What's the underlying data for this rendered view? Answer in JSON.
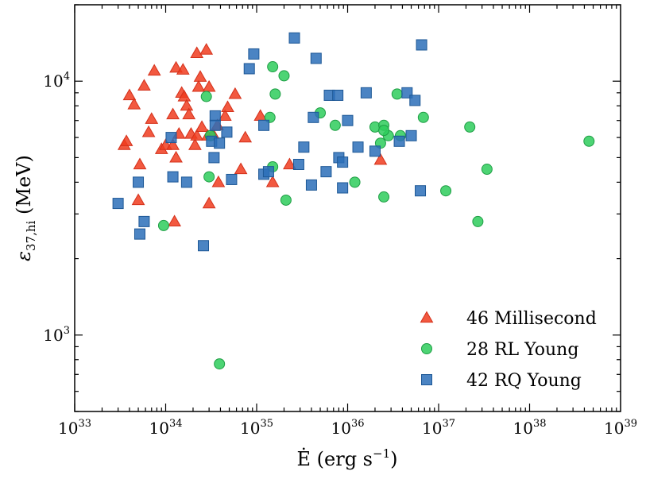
{
  "chart_data": {
    "type": "scatter",
    "xscale": "log",
    "yscale": "log",
    "xlim": [
      1e+33,
      1e+39
    ],
    "ylim": [
      500,
      20000
    ],
    "xlabel": {
      "main": "Ė (erg s",
      "sup": "−1",
      "close": ")"
    },
    "ylabel": {
      "main": "ε",
      "sub": "37,hi",
      "unit": " (MeV)"
    },
    "x_ticks": [
      {
        "base": "10",
        "exp": "33",
        "value": 1e+33
      },
      {
        "base": "10",
        "exp": "34",
        "value": 1e+34
      },
      {
        "base": "10",
        "exp": "35",
        "value": 1e+35
      },
      {
        "base": "10",
        "exp": "36",
        "value": 1e+36
      },
      {
        "base": "10",
        "exp": "37",
        "value": 1e+37
      },
      {
        "base": "10",
        "exp": "38",
        "value": 1e+38
      },
      {
        "base": "10",
        "exp": "39",
        "value": 1e+39
      }
    ],
    "y_ticks": [
      {
        "base": "10",
        "exp": "3",
        "value": 1000
      },
      {
        "base": "10",
        "exp": "4",
        "value": 10000
      }
    ],
    "legend_position": "bottom-right",
    "series": [
      {
        "name": "46 Millisecond",
        "marker": "triangle",
        "color": "#f03c1e",
        "edge": "#d4301a",
        "points": [
          [
            3.5e+33,
            5600
          ],
          [
            3.7e+33,
            5800
          ],
          [
            4e+33,
            8800
          ],
          [
            4.5e+33,
            8100
          ],
          [
            5e+33,
            3400
          ],
          [
            5.2e+33,
            4700
          ],
          [
            5.8e+33,
            9600
          ],
          [
            6.5e+33,
            6300
          ],
          [
            7e+33,
            7100
          ],
          [
            7.5e+33,
            11000
          ],
          [
            9e+33,
            5400
          ],
          [
            1e+34,
            5600
          ],
          [
            1.2e+34,
            7400
          ],
          [
            1.2e+34,
            5600
          ],
          [
            1.25e+34,
            2800
          ],
          [
            1.3e+34,
            11300
          ],
          [
            1.3e+34,
            5000
          ],
          [
            1.4e+34,
            6200
          ],
          [
            1.5e+34,
            9000
          ],
          [
            1.55e+34,
            11100
          ],
          [
            1.6e+34,
            8700
          ],
          [
            1.7e+34,
            8000
          ],
          [
            1.8e+34,
            7400
          ],
          [
            1.9e+34,
            6200
          ],
          [
            2.1e+34,
            5600
          ],
          [
            2.2e+34,
            6100
          ],
          [
            2.2e+34,
            12900
          ],
          [
            2.3e+34,
            9500
          ],
          [
            2.4e+34,
            10400
          ],
          [
            2.5e+34,
            6600
          ],
          [
            2.8e+34,
            13300
          ],
          [
            2.9e+34,
            6100
          ],
          [
            3e+34,
            9500
          ],
          [
            3e+34,
            3300
          ],
          [
            3.3e+34,
            6200
          ],
          [
            3.7e+34,
            6700
          ],
          [
            3.8e+34,
            4000
          ],
          [
            4.5e+34,
            7300
          ],
          [
            4.8e+34,
            7900
          ],
          [
            5.8e+34,
            8900
          ],
          [
            6.7e+34,
            4500
          ],
          [
            7.5e+34,
            6000
          ],
          [
            1.1e+35,
            7300
          ],
          [
            1.5e+35,
            4000
          ],
          [
            2.3e+35,
            4700
          ],
          [
            2.3e+36,
            4900
          ]
        ]
      },
      {
        "name": "28 RL Young",
        "marker": "circle",
        "color": "#2ecc5c",
        "edge": "#1f9e45",
        "points": [
          [
            9.5e+33,
            2700
          ],
          [
            2.8e+34,
            8700
          ],
          [
            3e+34,
            4200
          ],
          [
            3.1e+34,
            6100
          ],
          [
            3.9e+34,
            770
          ],
          [
            1.4e+35,
            7200
          ],
          [
            1.5e+35,
            4600
          ],
          [
            1.5e+35,
            11400
          ],
          [
            1.6e+35,
            8900
          ],
          [
            2e+35,
            10500
          ],
          [
            2.1e+35,
            3400
          ],
          [
            5e+35,
            7500
          ],
          [
            7.3e+35,
            6700
          ],
          [
            1.2e+36,
            4000
          ],
          [
            2e+36,
            6600
          ],
          [
            2.3e+36,
            5700
          ],
          [
            2.5e+36,
            6700
          ],
          [
            2.5e+36,
            3500
          ],
          [
            2.8e+36,
            6100
          ],
          [
            3.5e+36,
            8900
          ],
          [
            3.8e+36,
            6100
          ],
          [
            6.8e+36,
            7200
          ],
          [
            1.2e+37,
            3700
          ],
          [
            2.2e+37,
            6600
          ],
          [
            2.7e+37,
            2800
          ],
          [
            3.4e+37,
            4500
          ],
          [
            4.5e+38,
            5800
          ],
          [
            2.5e+36,
            6400
          ]
        ]
      },
      {
        "name": "42 RQ Young",
        "marker": "square",
        "color": "#2c6fb8",
        "edge": "#1e5896",
        "points": [
          [
            3e+33,
            3300
          ],
          [
            5e+33,
            4000
          ],
          [
            5.2e+33,
            2500
          ],
          [
            5.8e+33,
            2800
          ],
          [
            1.15e+34,
            6000
          ],
          [
            1.2e+34,
            4200
          ],
          [
            1.7e+34,
            4000
          ],
          [
            2.6e+34,
            2250
          ],
          [
            3.2e+34,
            5800
          ],
          [
            3.4e+34,
            5000
          ],
          [
            3.5e+34,
            7300
          ],
          [
            3.5e+34,
            6700
          ],
          [
            3.9e+34,
            5700
          ],
          [
            4.7e+34,
            6300
          ],
          [
            5.3e+34,
            4100
          ],
          [
            8.3e+34,
            11200
          ],
          [
            9.3e+34,
            12800
          ],
          [
            1.2e+35,
            4300
          ],
          [
            1.2e+35,
            6700
          ],
          [
            1.35e+35,
            4400
          ],
          [
            2.6e+35,
            14800
          ],
          [
            2.9e+35,
            4700
          ],
          [
            3.3e+35,
            5500
          ],
          [
            4e+35,
            3900
          ],
          [
            4.2e+35,
            7200
          ],
          [
            4.5e+35,
            12300
          ],
          [
            5.8e+35,
            4400
          ],
          [
            6.3e+35,
            8800
          ],
          [
            7.8e+35,
            8800
          ],
          [
            8e+35,
            5000
          ],
          [
            8.8e+35,
            4800
          ],
          [
            8.8e+35,
            3800
          ],
          [
            1e+36,
            7000
          ],
          [
            1.3e+36,
            5500
          ],
          [
            1.6e+36,
            9000
          ],
          [
            2e+36,
            5300
          ],
          [
            3.7e+36,
            5800
          ],
          [
            4.5e+36,
            9000
          ],
          [
            5e+36,
            6100
          ],
          [
            5.5e+36,
            8400
          ],
          [
            6.3e+36,
            3700
          ],
          [
            6.5e+36,
            13900
          ]
        ]
      }
    ]
  }
}
